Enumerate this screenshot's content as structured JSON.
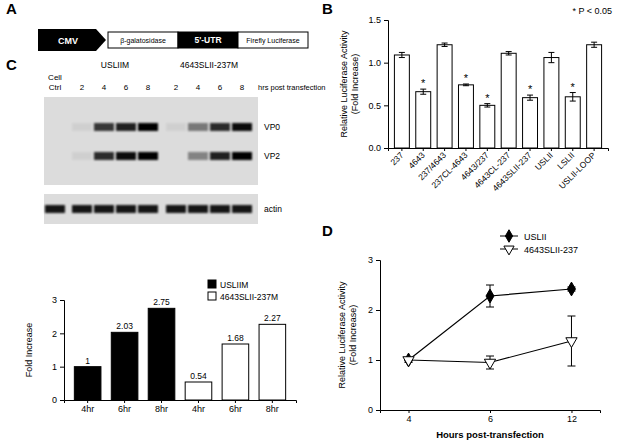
{
  "panel_labels": [
    "A",
    "B",
    "C",
    "D"
  ],
  "diagram": {
    "elements": [
      "CMV",
      "β-galatosidase",
      "5'-UTR",
      "Firefly Luciferase"
    ]
  },
  "blot": {
    "control_label": [
      "Cell",
      "Ctrl"
    ],
    "groups": [
      {
        "name": "USLIIM",
        "lanes": [
          2,
          4,
          6,
          8
        ]
      },
      {
        "name": "4643SLII-237M",
        "lanes": [
          2,
          4,
          6,
          8
        ]
      }
    ],
    "time_label": "hrs post transfection",
    "bands": [
      "VP0",
      "VP2"
    ],
    "band_intensity": [
      [
        0,
        0.05,
        0.75,
        0.85,
        1,
        0.05,
        0.45,
        0.8,
        0.95
      ],
      [
        0,
        0.05,
        0.8,
        0.95,
        1,
        0,
        0.4,
        0.85,
        1
      ]
    ],
    "loading_control": "actin",
    "loading_intensity": [
      0.9,
      0.9,
      0.9,
      0.9,
      0.9,
      0.9,
      0.9,
      0.9,
      0.9
    ]
  },
  "chart_data": [
    {
      "type": "bar",
      "ylabel": [
        "Relative Luciferase Activity",
        "(Fold Increase)"
      ],
      "annotation": "* P < 0.05",
      "categories": [
        "237",
        "4643",
        "237/4643",
        "237CL-4643",
        "4643/237",
        "4643CL-237",
        "4643SLII-237",
        "USLII",
        "LSLII",
        "USLII-LOOP"
      ],
      "values": [
        1.09,
        0.66,
        1.21,
        0.74,
        0.5,
        1.11,
        0.59,
        1.06,
        0.6,
        1.21
      ],
      "errors": [
        0.03,
        0.03,
        0.02,
        0.01,
        0.02,
        0.02,
        0.03,
        0.06,
        0.05,
        0.03
      ],
      "significance": [
        null,
        "*",
        null,
        "*",
        "*",
        null,
        "*",
        null,
        "*",
        null
      ],
      "color": "#ffffff",
      "ylim": [
        0,
        1.5
      ],
      "yticks": [
        {
          "value": 0,
          "label": "0.0"
        },
        0.5,
        {
          "value": 1,
          "label": "1.0"
        },
        {
          "value": 1.5,
          "label": "1.5"
        }
      ]
    },
    {
      "type": "bar",
      "ylabel": "Fold Increase",
      "categories": [
        "4hr",
        "6hr",
        "8hr",
        "4hr",
        "6hr",
        "8hr"
      ],
      "series": [
        {
          "name": "USLIIM",
          "color": "#000000",
          "values": [
            1,
            2.03,
            2.75,
            null,
            null,
            null
          ]
        },
        {
          "name": "4643SLII-237M",
          "color": "#ffffff",
          "values": [
            null,
            null,
            null,
            0.54,
            1.68,
            2.27
          ]
        }
      ],
      "data_labels": true,
      "legend": "top-right",
      "ylim": [
        0,
        3
      ],
      "yticks": [
        0,
        1,
        2,
        3
      ]
    },
    {
      "type": "line",
      "xlabel": "Hours post-transfection",
      "ylabel": [
        "Relative Luciferase Activity",
        "(Fold Increase)"
      ],
      "categories": [
        "4",
        "6",
        "12"
      ],
      "series": [
        {
          "name": "USLII",
          "color": "#000000",
          "marker": "diamond",
          "values": [
            1,
            2.28,
            2.42
          ],
          "errors": [
            0.02,
            0.22,
            0.04
          ]
        },
        {
          "name": "4643SLII-237",
          "color": "#000000",
          "marker": "open-triangle-down",
          "values": [
            1,
            0.95,
            1.38
          ],
          "errors": [
            0.05,
            0.13,
            0.5
          ]
        }
      ],
      "legend": "top-right",
      "ylim": [
        0,
        3
      ],
      "yticks": [
        0,
        1,
        2,
        3
      ]
    }
  ]
}
